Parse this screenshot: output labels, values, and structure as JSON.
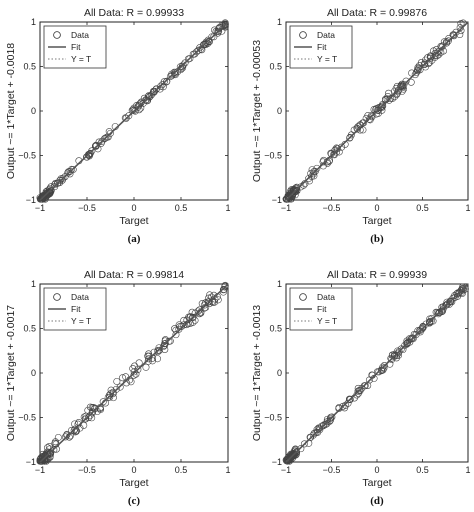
{
  "chart_data": [
    {
      "type": "scatter",
      "title": "All Data: R = 0.99933",
      "xlabel": "Target",
      "ylabel": "Output ~= 1*Target + -0.0018",
      "caption": "(a)",
      "xlim": [
        -1,
        1
      ],
      "ylim": [
        -1,
        1
      ],
      "xticks": [
        -1,
        -0.5,
        0,
        0.5,
        1
      ],
      "yticks": [
        -1,
        -0.5,
        0,
        0.5,
        1
      ],
      "xtick_labels": [
        "−1",
        "−0.5",
        "0",
        "0.5",
        "1"
      ],
      "ytick_labels": [
        "−1",
        "−0.5",
        "0",
        "0.5",
        "1"
      ],
      "legend_placement": "top-left",
      "legend": [
        {
          "label": "Data",
          "style": "circle"
        },
        {
          "label": "Fit",
          "style": "solid"
        },
        {
          "label": "Y = T",
          "style": "dotted"
        }
      ],
      "fit": {
        "slope": 1,
        "intercept": -0.0018
      },
      "spread": 0.025
    },
    {
      "type": "scatter",
      "title": "All Data: R = 0.99876",
      "xlabel": "Target",
      "ylabel": "Output ~= 1*Target + -0.00053",
      "caption": "(b)",
      "xlim": [
        -1,
        1
      ],
      "ylim": [
        -1,
        1
      ],
      "xticks": [
        -1,
        -0.5,
        0,
        0.5,
        1
      ],
      "yticks": [
        -1,
        -0.5,
        0,
        0.5,
        1
      ],
      "xtick_labels": [
        "−1",
        "−0.5",
        "0",
        "0.5",
        "1"
      ],
      "ytick_labels": [
        "−1",
        "−0.5",
        "0",
        "0.5",
        "1"
      ],
      "legend_placement": "top-left",
      "legend": [
        {
          "label": "Data",
          "style": "circle"
        },
        {
          "label": "Fit",
          "style": "solid"
        },
        {
          "label": "Y = T",
          "style": "dotted"
        }
      ],
      "fit": {
        "slope": 1,
        "intercept": -0.00053
      },
      "spread": 0.035
    },
    {
      "type": "scatter",
      "title": "All Data: R = 0.99814",
      "xlabel": "Target",
      "ylabel": "Output ~= 1*Target + -0.0017",
      "caption": "(c)",
      "xlim": [
        -1,
        1
      ],
      "ylim": [
        -1,
        1
      ],
      "xticks": [
        -1,
        -0.5,
        0,
        0.5,
        1
      ],
      "yticks": [
        -1,
        -0.5,
        0,
        0.5,
        1
      ],
      "xtick_labels": [
        "−1",
        "−0.5",
        "0",
        "0.5",
        "1"
      ],
      "ytick_labels": [
        "−1",
        "−0.5",
        "0",
        "0.5",
        "1"
      ],
      "legend_placement": "top-left",
      "legend": [
        {
          "label": "Data",
          "style": "circle"
        },
        {
          "label": "Fit",
          "style": "solid"
        },
        {
          "label": "Y = T",
          "style": "dotted"
        }
      ],
      "fit": {
        "slope": 1,
        "intercept": -0.0017
      },
      "spread": 0.045
    },
    {
      "type": "scatter",
      "title": "All Data: R = 0.99939",
      "xlabel": "Target",
      "ylabel": "Output ~= 1*Target + -0.0013",
      "caption": "(d)",
      "xlim": [
        -1,
        1
      ],
      "ylim": [
        -1,
        1
      ],
      "xticks": [
        -1,
        -0.5,
        0,
        0.5,
        1
      ],
      "yticks": [
        -1,
        -0.5,
        0,
        0.5,
        1
      ],
      "xtick_labels": [
        "−1",
        "−0.5",
        "0",
        "0.5",
        "1"
      ],
      "ytick_labels": [
        "−1",
        "−0.5",
        "0",
        "0.5",
        "1"
      ],
      "legend_placement": "top-left",
      "legend": [
        {
          "label": "Data",
          "style": "circle"
        },
        {
          "label": "Fit",
          "style": "solid"
        },
        {
          "label": "Y = T",
          "style": "dotted"
        }
      ],
      "fit": {
        "slope": 1,
        "intercept": -0.0013
      },
      "spread": 0.022
    }
  ]
}
